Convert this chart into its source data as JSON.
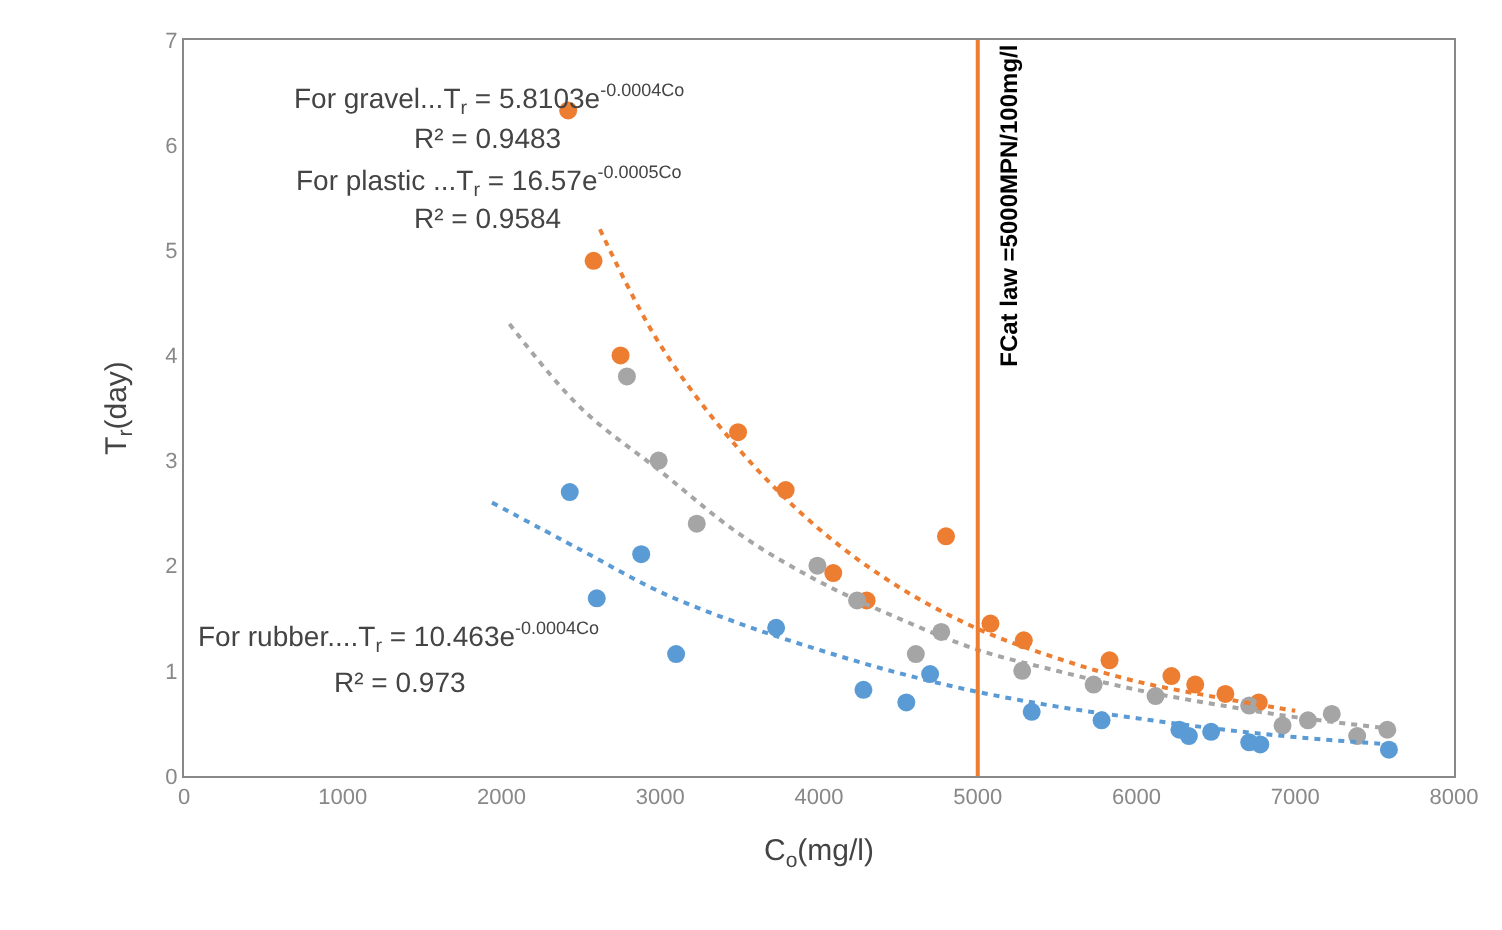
{
  "chart_data": {
    "type": "scatter",
    "xlabel": "C$_{o}$(mg/l)",
    "ylabel": "T$_{r}$(day)",
    "xlim": [
      0,
      8000
    ],
    "xticks": [
      0,
      1000,
      2000,
      3000,
      4000,
      5000,
      6000,
      7000,
      8000
    ],
    "ylim": [
      0,
      7
    ],
    "yticks": [
      0,
      1,
      2,
      3,
      4,
      5,
      6,
      7
    ],
    "marker": "circle",
    "series": [
      {
        "color": "#ed7d31",
        "x": [
          2420,
          2580,
          2750,
          3490,
          3790,
          4800,
          4090,
          4300,
          5080,
          5290,
          5830,
          6220,
          6370,
          6560,
          6770
        ],
        "values": [
          6.33,
          4.9,
          4.0,
          3.27,
          2.72,
          2.28,
          1.93,
          1.67,
          1.45,
          1.29,
          1.1,
          0.95,
          0.87,
          0.78,
          0.7
        ]
      },
      {
        "color": "#a5a5a5",
        "x": [
          2790,
          2990,
          3230,
          3990,
          4240,
          4770,
          4610,
          5280,
          5730,
          6120,
          6710,
          6920,
          7080,
          7230,
          7390,
          7580
        ],
        "values": [
          3.8,
          3.0,
          2.4,
          2.0,
          1.67,
          1.37,
          1.16,
          1.0,
          0.87,
          0.76,
          0.67,
          0.48,
          0.53,
          0.59,
          0.38,
          0.44
        ]
      },
      {
        "color": "#5b9bd5",
        "x": [
          2430,
          2880,
          2600,
          3730,
          3100,
          4280,
          4550,
          4700,
          5340,
          5780,
          6270,
          6330,
          6470,
          6710,
          6780,
          7590
        ],
        "values": [
          2.7,
          2.11,
          1.69,
          1.41,
          1.16,
          0.82,
          0.7,
          0.97,
          0.61,
          0.53,
          0.44,
          0.38,
          0.42,
          0.32,
          0.3,
          0.25
        ]
      },
      {
        "type": "line",
        "line_style": "dotted",
        "marker": "none",
        "color": "#ed7d31",
        "x": [
          2620,
          3000,
          3500,
          4000,
          4500,
          5000,
          5500,
          6000,
          6500,
          7000
        ],
        "values": [
          5.2,
          4.1,
          3.1,
          2.35,
          1.8,
          1.4,
          1.12,
          0.9,
          0.75,
          0.62
        ]
      },
      {
        "type": "line",
        "line_style": "dotted",
        "marker": "none",
        "color": "#a5a5a5",
        "x": [
          2050,
          2500,
          3000,
          3500,
          4000,
          4500,
          5000,
          5500,
          6000,
          6500,
          7000,
          7600
        ],
        "values": [
          4.3,
          3.5,
          2.9,
          2.3,
          1.85,
          1.5,
          1.2,
          1.0,
          0.82,
          0.68,
          0.56,
          0.45
        ]
      },
      {
        "type": "line",
        "line_style": "dotted",
        "marker": "none",
        "color": "#5b9bd5",
        "x": [
          1940,
          2500,
          3000,
          3500,
          4000,
          4500,
          5000,
          5500,
          6000,
          6500,
          7000,
          7600
        ],
        "values": [
          2.6,
          2.15,
          1.75,
          1.45,
          1.2,
          0.98,
          0.8,
          0.66,
          0.55,
          0.45,
          0.37,
          0.3
        ]
      }
    ],
    "ref_lines": [
      {
        "axis": "x",
        "value": 5000,
        "label": "FCat law =5000MPN/100mg/l",
        "color": "#ed7d31",
        "line_style": "solid"
      }
    ],
    "annotations": [
      "For gravel...T$_{r}$ = 5.8103e$^{-0.0004Co}$",
      "R² = 0.9483",
      "For plastic ...T$_{r}$ = 16.57e$^{-0.0005Co}$",
      "R² = 0.9584",
      "For rubber....T$_{r}$ = 10.463e$^{-0.0004Co}$",
      "R² = 0.973"
    ]
  }
}
